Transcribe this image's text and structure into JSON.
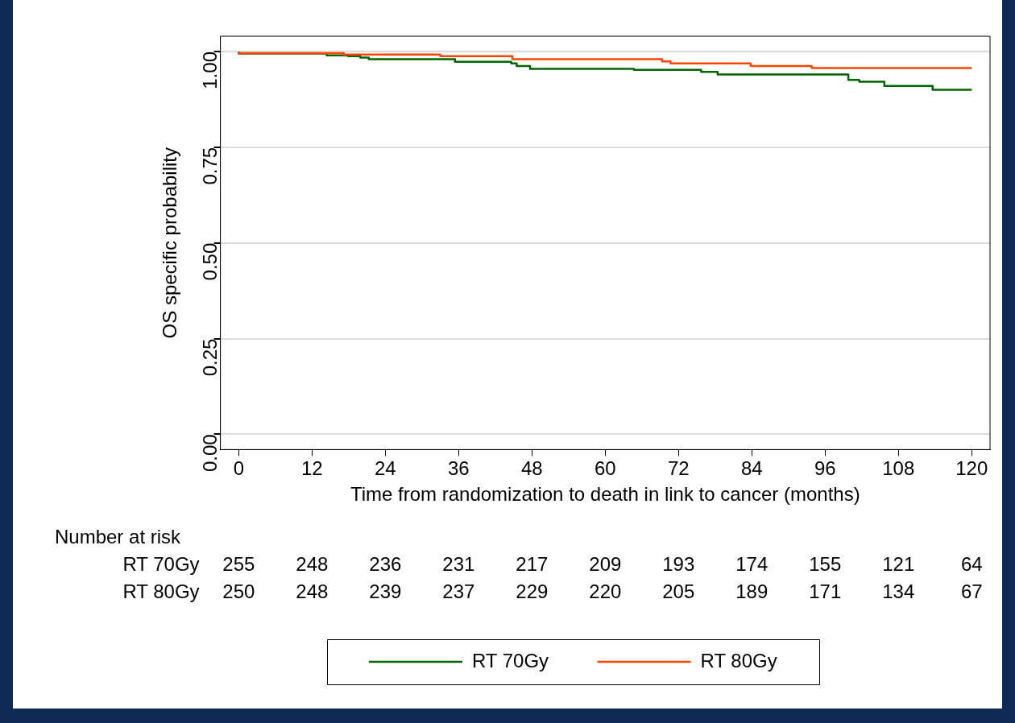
{
  "chart_data": {
    "type": "step",
    "xlabel": "Time from randomization to death in link to cancer (months)",
    "ylabel": "OS specific probability",
    "xlim": [
      -3,
      123
    ],
    "xticks": [
      0,
      12,
      24,
      36,
      48,
      60,
      72,
      84,
      96,
      108,
      120
    ],
    "ylim": [
      -0.04,
      1.04
    ],
    "yticks": [
      {
        "value": 0,
        "label": "0.00"
      },
      {
        "value": 0.25,
        "label": "0.25"
      },
      {
        "value": 0.5,
        "label": "0.50"
      },
      {
        "value": 0.75,
        "label": "0.75"
      },
      {
        "value": 1,
        "label": "1.00"
      }
    ],
    "grid": "y",
    "legend": "bottom",
    "series": [
      {
        "name": "RT 70Gy",
        "color": "#006400",
        "x": [
          0,
          14.4,
          17.9,
          19.9,
          21.3,
          35.4,
          44.6,
          45.5,
          47.7,
          64.7,
          75.7,
          78.4,
          99.8,
          101.6,
          105.7,
          113.6,
          116.2,
          120
        ],
        "values": [
          1,
          0.995,
          0.99,
          0.988,
          0.984,
          0.98,
          0.973,
          0.969,
          0.962,
          0.955,
          0.952,
          0.947,
          0.94,
          0.926,
          0.921,
          0.91,
          0.9,
          0.9
        ]
      },
      {
        "name": "RT 80Gy",
        "color": "#ff4500",
        "x": [
          0,
          17.2,
          33,
          44.8,
          69.3,
          70.7,
          83.8,
          93.8,
          103.5,
          120
        ],
        "values": [
          1,
          0.996,
          0.992,
          0.988,
          0.98,
          0.974,
          0.969,
          0.962,
          0.957,
          0.957
        ]
      }
    ],
    "annotations": [
      "Number at risk",
      "RT 70Gy",
      "255",
      "248",
      "236",
      "231",
      "217",
      "209",
      "193",
      "174",
      "155",
      "121",
      "64",
      "RT 80Gy",
      "250",
      "248",
      "239",
      "237",
      "229",
      "220",
      "205",
      "189",
      "171",
      "134",
      "67"
    ]
  }
}
